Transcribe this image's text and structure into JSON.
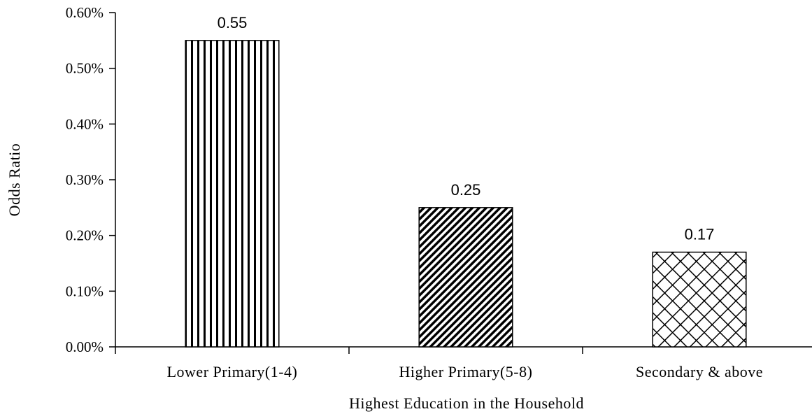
{
  "chart_data": {
    "type": "bar",
    "categories": [
      "Lower Primary(1-4)",
      "Higher Primary(5-8)",
      "Secondary & above"
    ],
    "values": [
      0.55,
      0.25,
      0.17
    ],
    "data_labels": [
      "0.55",
      "0.25",
      "0.17"
    ],
    "title": "",
    "xlabel": "Highest Education in the Household",
    "ylabel": "Odds Ratio",
    "ylim": [
      0,
      0.6
    ],
    "yticks": [
      0,
      0.1,
      0.2,
      0.3,
      0.4,
      0.5,
      0.6
    ],
    "ytick_labels": [
      "0.00%",
      "0.10%",
      "0.20%",
      "0.30%",
      "0.40%",
      "0.50%",
      "0.60%"
    ],
    "grid": false,
    "legend": "none",
    "patterns": [
      "vertical-lines",
      "diagonal-lines",
      "crosshatch"
    ],
    "bar_color": "#000000",
    "background": "#ffffff"
  }
}
